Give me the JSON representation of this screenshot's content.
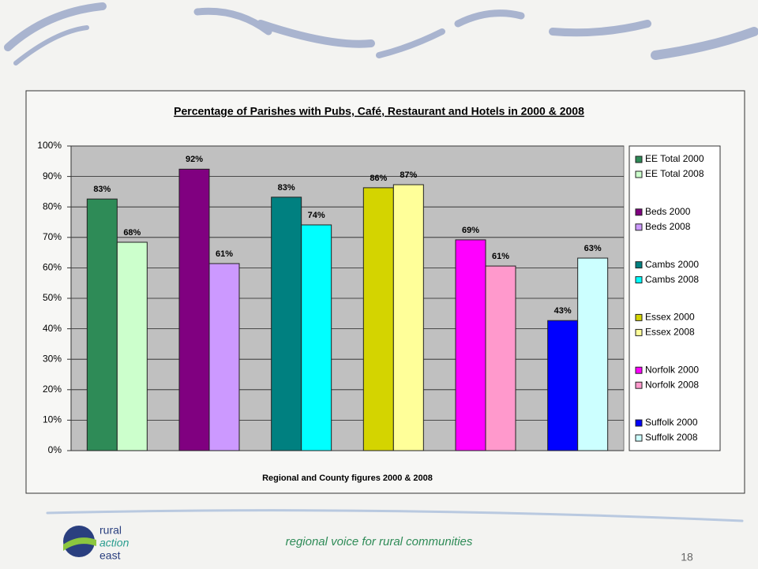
{
  "chart_data": {
    "type": "bar",
    "title": "Percentage of Parishes with Pubs, Café, Restaurant and Hotels in 2000 & 2008",
    "x_label": "Regional and County figures 2000 & 2008",
    "categories": [
      null,
      null,
      null,
      null,
      null,
      null
    ],
    "series": [
      {
        "name": "EE Total 2000",
        "color": "#2e8b57",
        "values": [
          82.6,
          null,
          null,
          null,
          null,
          null
        ],
        "value_labels": [
          "83%",
          null,
          null,
          null,
          null,
          null
        ]
      },
      {
        "name": "EE Total 2008",
        "color": "#ccffcc",
        "values": [
          68.4,
          null,
          null,
          null,
          null,
          null
        ],
        "value_labels": [
          "68%",
          null,
          null,
          null,
          null,
          null
        ]
      },
      {
        "name": "Beds 2000",
        "color": "#800080",
        "values": [
          null,
          92.4,
          null,
          null,
          null,
          null
        ],
        "value_labels": [
          null,
          "92%",
          null,
          null,
          null,
          null
        ]
      },
      {
        "name": "Beds 2008",
        "color": "#cc99ff",
        "values": [
          null,
          61.4,
          null,
          null,
          null,
          null
        ],
        "value_labels": [
          null,
          "61%",
          null,
          null,
          null,
          null
        ]
      },
      {
        "name": "Cambs 2000",
        "color": "#008080",
        "values": [
          null,
          null,
          83.2,
          null,
          null,
          null
        ],
        "value_labels": [
          null,
          null,
          "83%",
          null,
          null,
          null
        ]
      },
      {
        "name": "Cambs 2008",
        "color": "#00ffff",
        "values": [
          null,
          null,
          74.1,
          null,
          null,
          null
        ],
        "value_labels": [
          null,
          null,
          "74%",
          null,
          null,
          null
        ]
      },
      {
        "name": "Essex 2000",
        "color": "#d4d400",
        "values": [
          null,
          null,
          null,
          86.3,
          null,
          null
        ],
        "value_labels": [
          null,
          null,
          null,
          "86%",
          null,
          null
        ]
      },
      {
        "name": "Essex 2008",
        "color": "#ffff99",
        "values": [
          null,
          null,
          null,
          87.3,
          null,
          null
        ],
        "value_labels": [
          null,
          null,
          null,
          "87%",
          null,
          null
        ]
      },
      {
        "name": "Norfolk 2000",
        "color": "#ff00ff",
        "values": [
          null,
          null,
          null,
          null,
          69.2,
          null
        ],
        "value_labels": [
          null,
          null,
          null,
          null,
          "69%",
          null
        ]
      },
      {
        "name": "Norfolk 2008",
        "color": "#ff99cc",
        "values": [
          null,
          null,
          null,
          null,
          60.6,
          null
        ],
        "value_labels": [
          null,
          null,
          null,
          null,
          "61%",
          null
        ]
      },
      {
        "name": "Suffolk 2000",
        "color": "#0000ff",
        "values": [
          null,
          null,
          null,
          null,
          null,
          42.7
        ],
        "value_labels": [
          null,
          null,
          null,
          null,
          null,
          "43%"
        ]
      },
      {
        "name": "Suffolk 2008",
        "color": "#ccffff",
        "values": [
          null,
          null,
          null,
          null,
          null,
          63.2
        ],
        "value_labels": [
          null,
          null,
          null,
          null,
          null,
          "63%"
        ]
      }
    ],
    "ylim": [
      0,
      100
    ],
    "yticks": [
      {
        "value": 0,
        "label": "0%"
      },
      {
        "value": 10,
        "label": "10%"
      },
      {
        "value": 20,
        "label": "20%"
      },
      {
        "value": 30,
        "label": "30%"
      },
      {
        "value": 40,
        "label": "40%"
      },
      {
        "value": 50,
        "label": "50%"
      },
      {
        "value": 60,
        "label": "60%"
      },
      {
        "value": 70,
        "label": "70%"
      },
      {
        "value": 80,
        "label": "80%"
      },
      {
        "value": 90,
        "label": "90%"
      },
      {
        "value": 100,
        "label": "100%"
      }
    ],
    "grid": true,
    "legend": "right"
  },
  "footer": {
    "tagline": "regional voice for rural communities",
    "page_number": "18",
    "logo": [
      "rural",
      "action",
      "east"
    ]
  }
}
